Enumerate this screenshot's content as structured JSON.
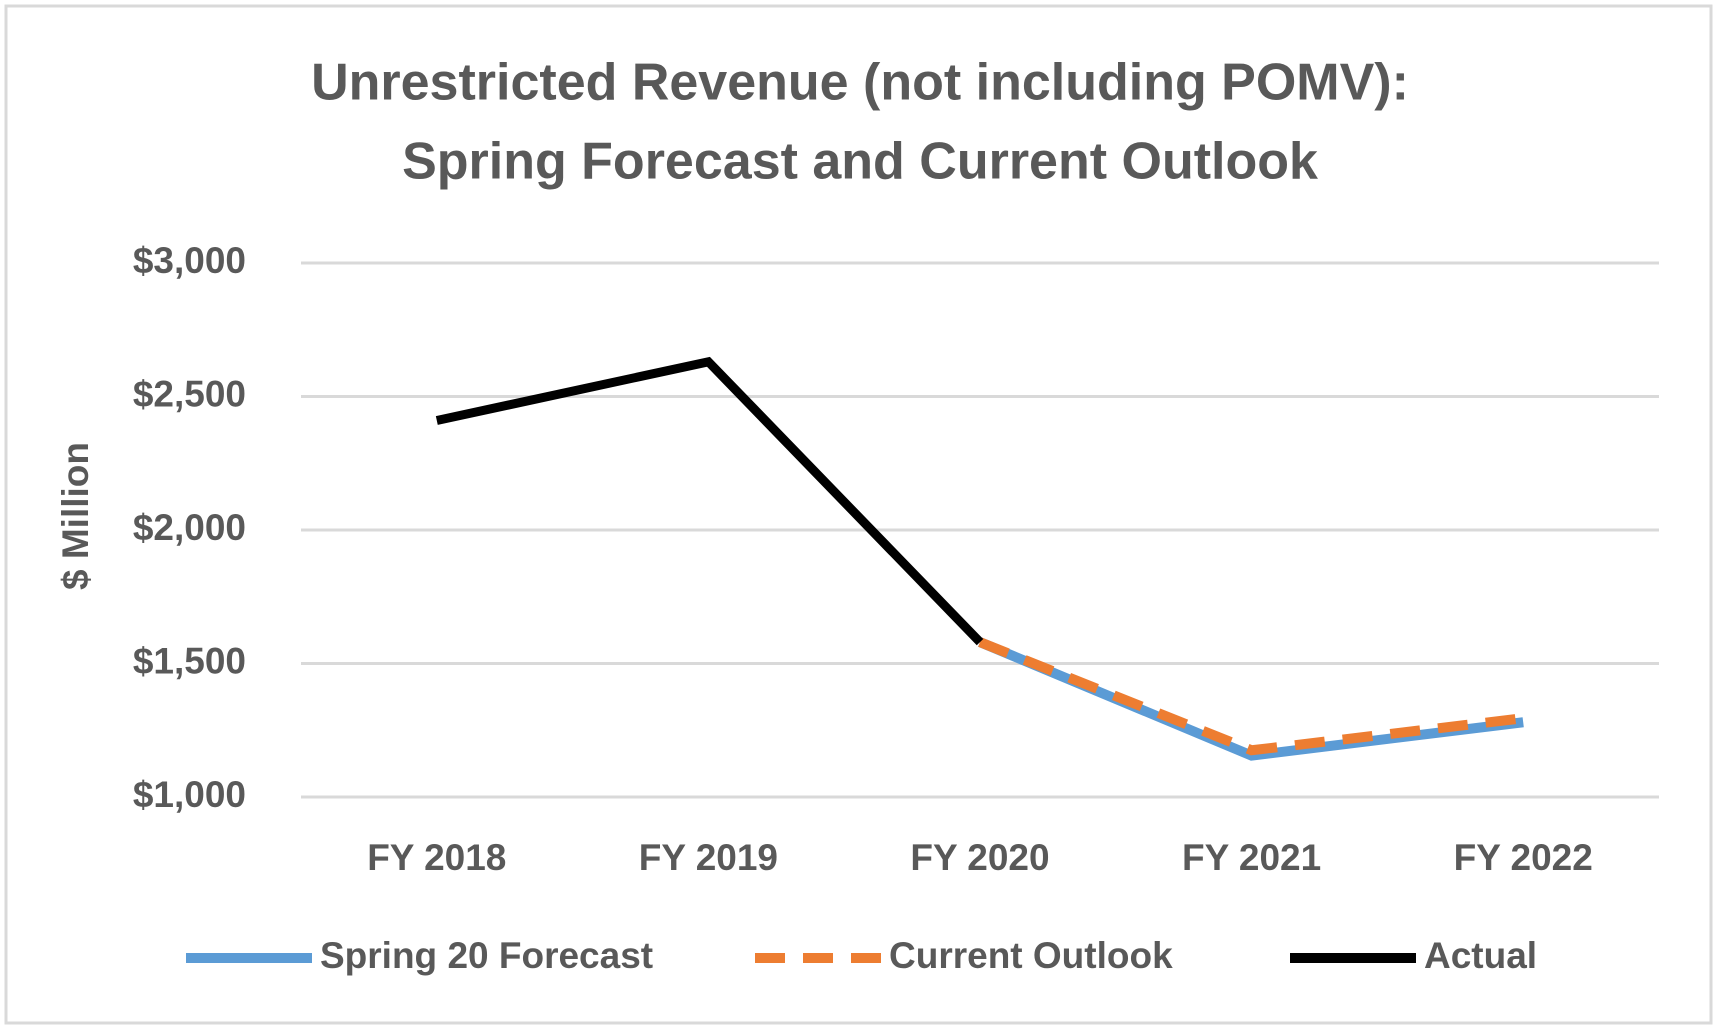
{
  "chart_data": {
    "type": "line",
    "title": [
      "Unrestricted Revenue (not including POMV):",
      "Spring Forecast and Current Outlook"
    ],
    "ylabel": "$ Million",
    "categories": [
      "FY 2018",
      "FY 2019",
      "FY 2020",
      "FY 2021",
      "FY 2022"
    ],
    "series": [
      {
        "name": "Spring 20 Forecast",
        "color": "#5b9bd5",
        "dash": "solid",
        "values": [
          null,
          null,
          1580,
          1155,
          1280
        ]
      },
      {
        "name": "Current Outlook",
        "color": "#ed7d31",
        "dash": "dashed",
        "values": [
          null,
          null,
          1580,
          1175,
          1295
        ]
      },
      {
        "name": "Actual",
        "color": "#000000",
        "dash": "solid",
        "values": [
          2410,
          2630,
          1580,
          null,
          null
        ]
      }
    ],
    "ylim": [
      1000,
      3000
    ],
    "yticks": [
      {
        "value": 1000,
        "label": "$1,000"
      },
      {
        "value": 1500,
        "label": "$1,500"
      },
      {
        "value": 2000,
        "label": "$2,000"
      },
      {
        "value": 2500,
        "label": "$2,500"
      },
      {
        "value": 3000,
        "label": "$3,000"
      }
    ],
    "grid": true,
    "legend": "bottom"
  }
}
